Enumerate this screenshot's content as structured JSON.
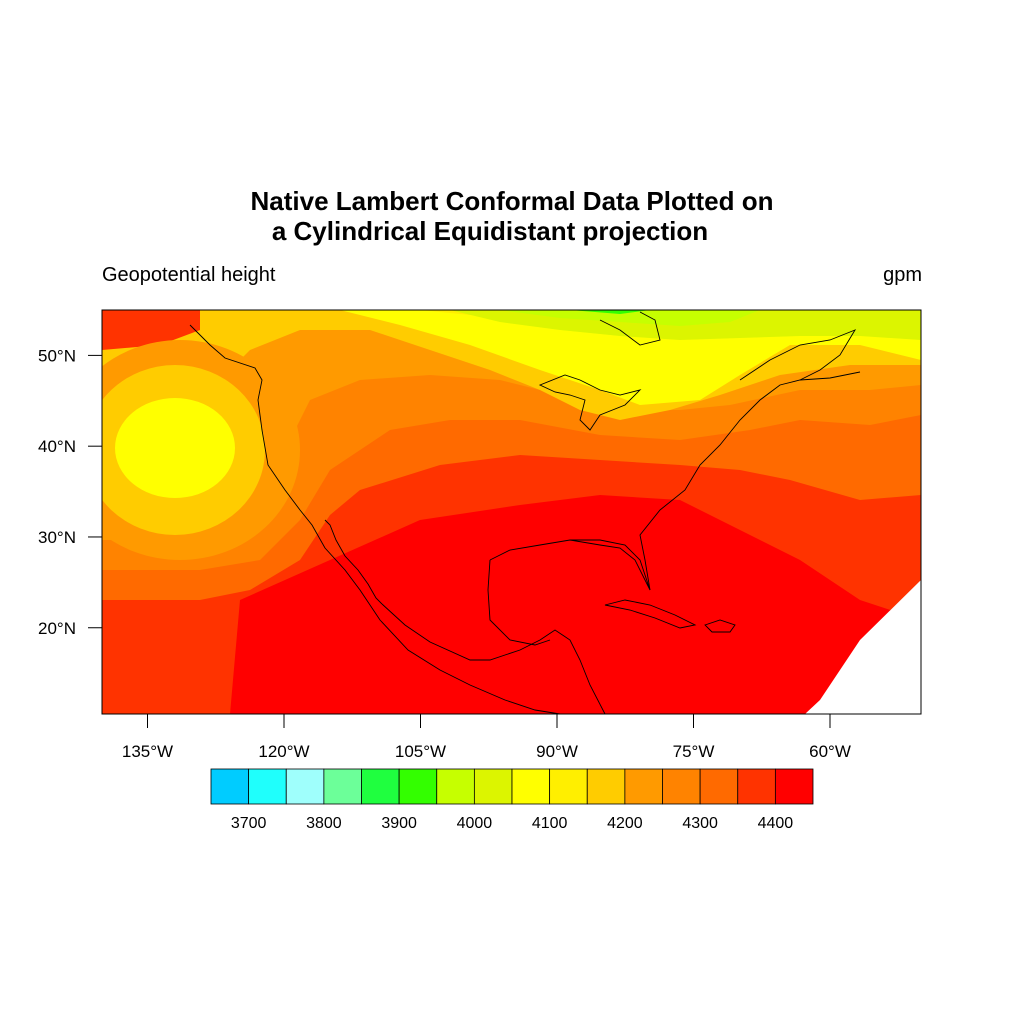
{
  "title_line1": "Native Lambert Conformal Data Plotted on",
  "title_line2": "a Cylindrical Equidistant projection",
  "left_string": "Geopotential height",
  "right_string": "gpm",
  "map": {
    "projection": "Cylindrical Equidistant",
    "lon_ticks": [
      {
        "lon": -135,
        "label": "135°W"
      },
      {
        "lon": -120,
        "label": "120°W"
      },
      {
        "lon": -105,
        "label": "105°W"
      },
      {
        "lon": -90,
        "label": "90°W"
      },
      {
        "lon": -75,
        "label": "75°W"
      },
      {
        "lon": -60,
        "label": "60°W"
      }
    ],
    "lat_ticks": [
      {
        "lat": 50,
        "label": "50°N"
      },
      {
        "lat": 40,
        "label": "40°N"
      },
      {
        "lat": 30,
        "label": "30°N"
      },
      {
        "lat": 20,
        "label": "20°N"
      }
    ]
  },
  "colorbar": {
    "colors": [
      "#00ccff",
      "#1ffffc",
      "#9ffffc",
      "#6cff99",
      "#1fff3f",
      "#33ff00",
      "#c6ff00",
      "#dcf500",
      "#ffff00",
      "#ffef00",
      "#ffcc00",
      "#ff9a00",
      "#ff8300",
      "#ff6a00",
      "#ff3300",
      "#ff0000"
    ],
    "labels": [
      "3700",
      "3800",
      "3900",
      "4000",
      "4100",
      "4200",
      "4300",
      "4400"
    ]
  },
  "chart_data": {
    "type": "heatmap",
    "variable": "Geopotential height",
    "units": "gpm",
    "contour_levels": [
      3650,
      3700,
      3750,
      3800,
      3850,
      3900,
      3950,
      4000,
      4050,
      4100,
      4150,
      4200,
      4250,
      4300,
      4350,
      4400,
      4450
    ],
    "xlim": [
      -140,
      -50
    ],
    "ylim": [
      10.5,
      55
    ]
  }
}
